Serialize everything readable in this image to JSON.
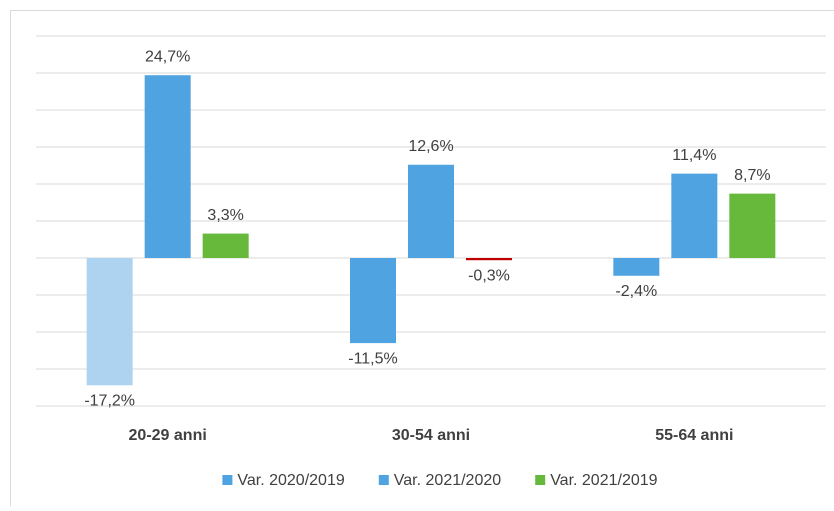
{
  "chart_data": {
    "type": "bar",
    "categories": [
      "20-29 anni",
      "30-54 anni",
      "55-64 anni"
    ],
    "series": [
      {
        "name": "Var. 2020/2019",
        "color": "#4fa3e0",
        "colors": [
          "#aed3f0",
          "#4fa3e0",
          "#4fa3e0"
        ],
        "values": [
          -17.2,
          -11.5,
          -2.4
        ],
        "value_labels": [
          "-17,2%",
          "-11,5%",
          "-2,4%"
        ]
      },
      {
        "name": "Var. 2021/2020",
        "color": "#4fa3e0",
        "colors": [
          "#4fa3e0",
          "#4fa3e0",
          "#4fa3e0"
        ],
        "values": [
          24.7,
          12.6,
          11.4
        ],
        "value_labels": [
          "24,7%",
          "12,6%",
          "11,4%"
        ]
      },
      {
        "name": "Var. 2021/2019",
        "color": "#66b93a",
        "colors": [
          "#66b93a",
          "#c00000",
          "#66b93a"
        ],
        "values": [
          3.3,
          -0.3,
          8.7
        ],
        "value_labels": [
          "3,3%",
          "-0,3%",
          "8,7%"
        ]
      }
    ],
    "ylim": [
      -20,
      30
    ],
    "yticks": [
      -20,
      -15,
      -10,
      -5,
      0,
      5,
      10,
      15,
      20,
      25,
      30
    ],
    "grid": true,
    "legend": "bottom"
  }
}
